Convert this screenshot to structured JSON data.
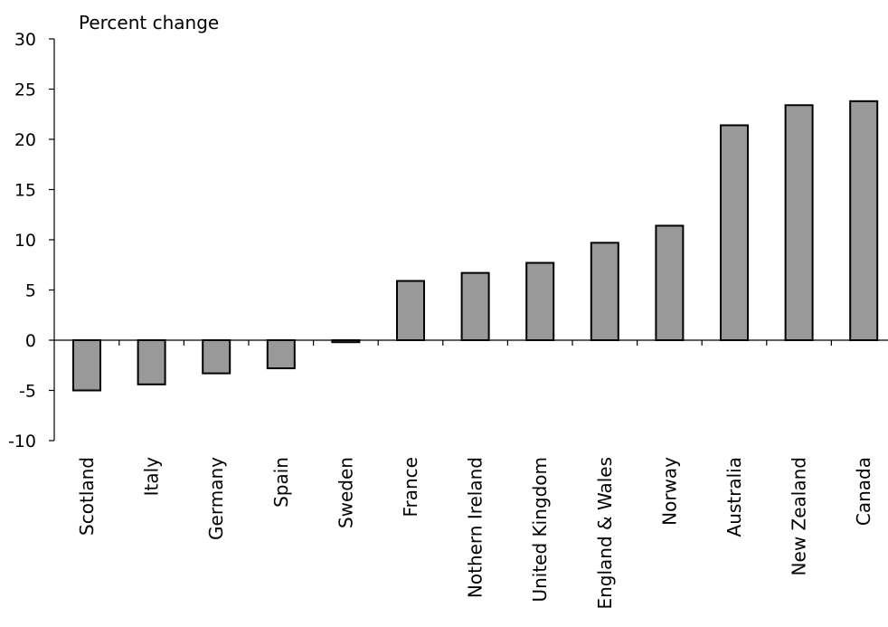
{
  "chart_data": {
    "type": "bar",
    "title": "",
    "xlabel": "",
    "ylabel": "Percent change",
    "ylim": [
      -10,
      30
    ],
    "yticks": [
      -10,
      -5,
      0,
      5,
      10,
      15,
      20,
      25,
      30
    ],
    "grid": false,
    "legend": "none",
    "bar_color": "#999999",
    "categories": [
      "Scotland",
      "Italy",
      "Germany",
      "Spain",
      "Sweden",
      "France",
      "Nothern Ireland",
      "United Kingdom",
      "England & Wales",
      "Norway",
      "Australia",
      "New Zealand",
      "Canada"
    ],
    "values": [
      -5.0,
      -4.4,
      -3.3,
      -2.8,
      -0.2,
      5.9,
      6.7,
      7.7,
      9.7,
      11.4,
      21.4,
      23.4,
      23.8
    ]
  }
}
